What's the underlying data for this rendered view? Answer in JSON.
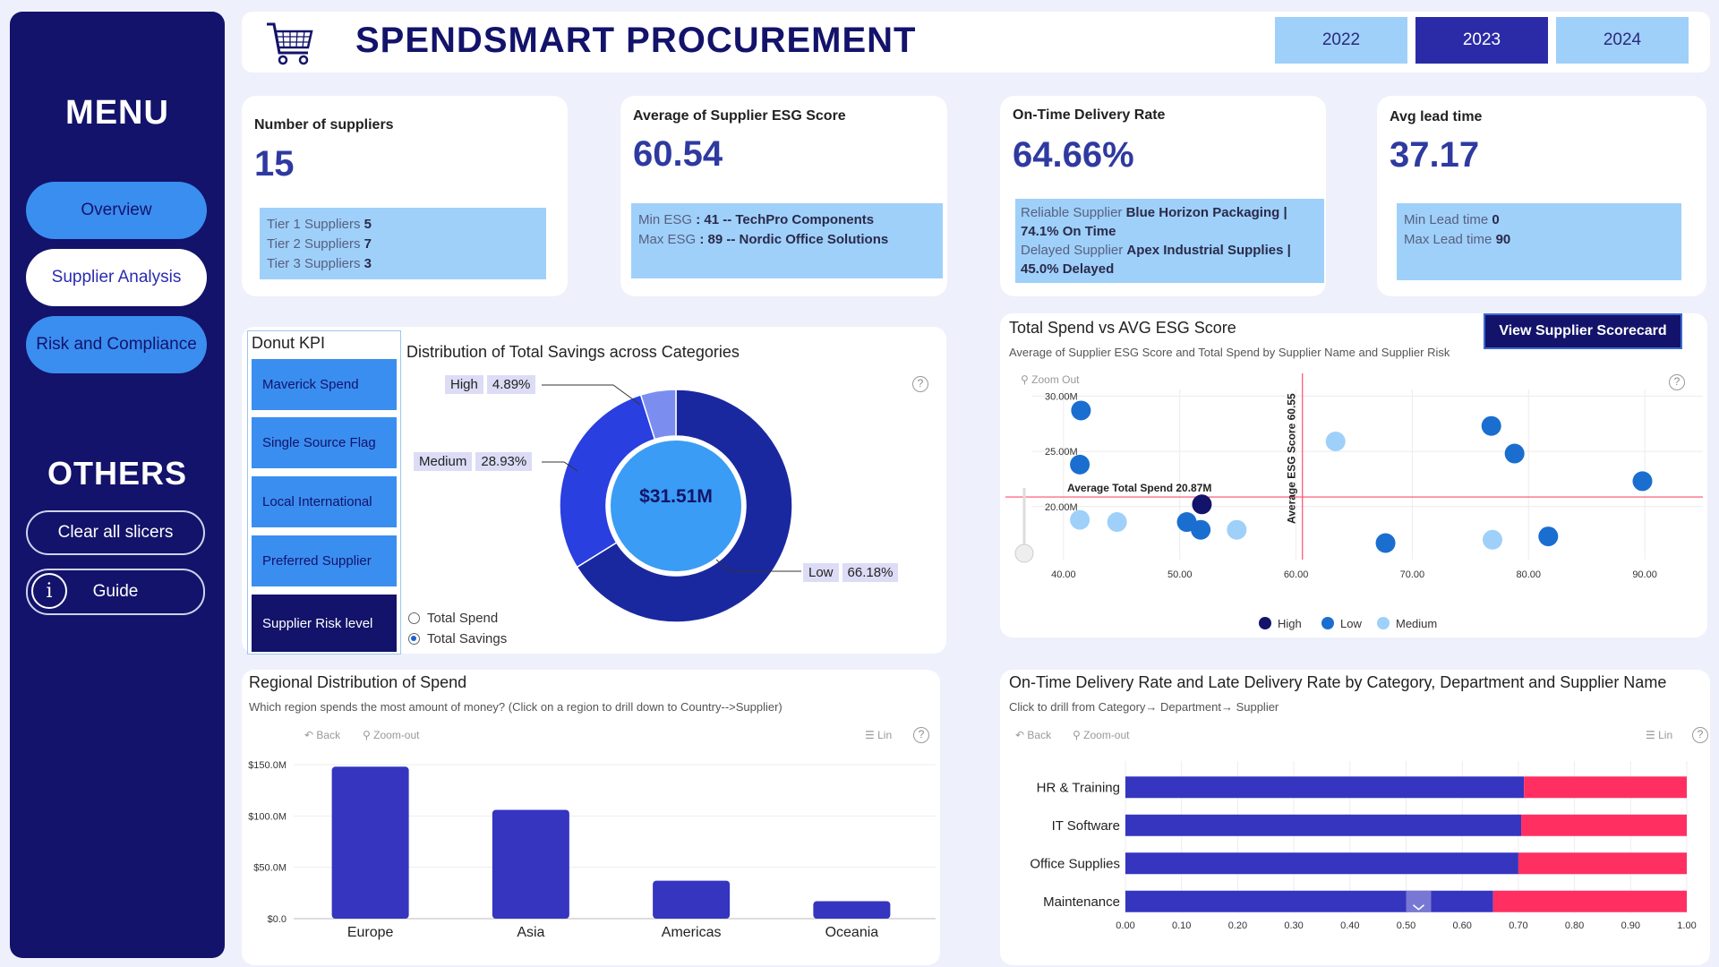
{
  "sidebar": {
    "menu_title": "MENU",
    "nav": [
      "Overview",
      "Supplier Analysis",
      "Risk and Compliance"
    ],
    "others_title": "OTHERS",
    "clear_label": "Clear all slicers",
    "guide_label": "Guide",
    "guide_icon": "i"
  },
  "header": {
    "title": "SPENDSMART PROCUREMENT",
    "years": [
      "2022",
      "2023",
      "2024"
    ],
    "active_year": "2023"
  },
  "kpis": {
    "suppliers": {
      "label": "Number of suppliers",
      "value": "15",
      "lines": [
        {
          "k": "Tier 1 Suppliers",
          "v": "5"
        },
        {
          "k": "Tier 2 Suppliers",
          "v": "7"
        },
        {
          "k": "Tier 3 Suppliers",
          "v": "3"
        }
      ]
    },
    "esg": {
      "label": "Average of Supplier ESG Score",
      "value": "60.54",
      "lines": [
        {
          "k": "Min ESG",
          "v": ": 41 -- TechPro Components"
        },
        {
          "k": "Max ESG",
          "v": ": 89 -- Nordic Office Solutions"
        }
      ]
    },
    "delivery": {
      "label": "On-Time Delivery Rate",
      "value": "64.66%",
      "lines": [
        {
          "k": "Reliable Supplier",
          "v": "Blue Horizon Packaging | 74.1% On Time"
        },
        {
          "k": "Delayed Supplier",
          "v": "Apex Industrial Supplies | 45.0% Delayed"
        }
      ]
    },
    "lead": {
      "label": "Avg lead time",
      "value": "37.17",
      "lines": [
        {
          "k": "Min Lead time",
          "v": "0"
        },
        {
          "k": "Max Lead time",
          "v": "90"
        }
      ]
    }
  },
  "donut_kpi": {
    "title": "Donut KPI",
    "options": [
      "Maverick Spend",
      "Single Source Flag",
      "Local International",
      "Preferred Supplier",
      "Supplier Risk level"
    ],
    "active": "Supplier Risk level"
  },
  "donut": {
    "title": "Distribution of Total Savings across Categories",
    "center_label": "$31.51M",
    "radio": [
      "Total Spend",
      "Total Savings"
    ],
    "radio_selected": "Total Savings",
    "colors": {
      "Low": "#1a28a0",
      "Medium": "#2a3fe0",
      "High": "#7b8ef0"
    }
  },
  "scatter": {
    "title": "Total Spend vs AVG ESG Score",
    "subtitle": "Average of Supplier ESG Score and Total Spend by Supplier Name and Supplier Risk",
    "button": "View Supplier Scorecard",
    "zoom_out": "Zoom Out",
    "ref_h_label": "Average Total Spend 20.87M",
    "ref_v_label": "Average ESG Score 60.55",
    "colors": {
      "High": "#13136b",
      "Low": "#1a6ed0",
      "Medium": "#9fd0fa"
    }
  },
  "regional": {
    "title": "Regional Distribution of Spend",
    "subtitle": "Which region spends the most amount of money? (Click on a region to drill down to Country-->Supplier)",
    "back": "Back",
    "zoom": "Zoom-out",
    "lin": "Lin",
    "color": "#3535c0"
  },
  "delivery_chart": {
    "title": "On-Time Delivery Rate and Late Delivery Rate by Category, Department and Supplier Name",
    "subtitle": "Click to drill from Category→ Department→ Supplier",
    "back": "Back",
    "zoom": "Zoom-out",
    "lin": "Lin",
    "colors": {
      "on_time": "#3535c0",
      "late": "#ff2f62"
    }
  },
  "icons": [
    "cart-icon",
    "info-icon",
    "question-icon",
    "back-icon",
    "zoom-icon",
    "list-icon",
    "chevron-down-icon"
  ],
  "chart_data": [
    {
      "type": "pie",
      "title": "Distribution of Total Savings across Categories",
      "categories": [
        "Low",
        "Medium",
        "High"
      ],
      "values": [
        66.18,
        28.93,
        4.89
      ],
      "labels": [
        "66.18%",
        "28.93%",
        "4.89%"
      ],
      "center": "$31.51M"
    },
    {
      "type": "scatter",
      "title": "Total Spend vs AVG ESG Score",
      "x_ticks": [
        "40.00",
        "50.00",
        "60.00",
        "70.00",
        "80.00",
        "90.00"
      ],
      "y_ticks": [
        "20.00M",
        "25.00M",
        "30.00M"
      ],
      "xlim": [
        35,
        95
      ],
      "ylim": [
        15.2,
        30.6
      ],
      "ref_x": 60.55,
      "ref_y": 20.87,
      "legend": [
        "High",
        "Low",
        "Medium"
      ],
      "series": [
        {
          "name": "High",
          "points": [
            [
              51.9,
              20.2
            ]
          ]
        },
        {
          "name": "Low",
          "points": [
            [
              41.5,
              28.7
            ],
            [
              41.4,
              23.8
            ],
            [
              76.8,
              27.3
            ],
            [
              78.8,
              24.8
            ],
            [
              89.8,
              22.3
            ],
            [
              50.6,
              18.6
            ],
            [
              51.8,
              17.9
            ],
            [
              67.7,
              16.7
            ],
            [
              81.7,
              17.3
            ]
          ]
        },
        {
          "name": "Medium",
          "points": [
            [
              63.4,
              25.9
            ],
            [
              41.4,
              18.8
            ],
            [
              44.6,
              18.6
            ],
            [
              54.9,
              17.9
            ],
            [
              76.9,
              17.0
            ]
          ]
        }
      ]
    },
    {
      "type": "bar",
      "title": "Regional Distribution of Spend",
      "categories": [
        "Europe",
        "Asia",
        "Americas",
        "Oceania"
      ],
      "values": [
        148,
        106,
        37,
        17
      ],
      "y_ticks": [
        "$0.0",
        "$50.0M",
        "$100.0M",
        "$150.0M"
      ],
      "ylim": [
        0,
        150
      ]
    },
    {
      "type": "bar",
      "title": "On-Time Delivery Rate and Late Delivery Rate by Category, Department and Supplier Name",
      "categories": [
        "HR & Training",
        "IT Software",
        "Office Supplies",
        "Maintenance"
      ],
      "series": [
        {
          "name": "On-Time",
          "values": [
            0.71,
            0.705,
            0.7,
            0.655
          ]
        },
        {
          "name": "Late",
          "values": [
            0.29,
            0.295,
            0.3,
            0.345
          ]
        }
      ],
      "x_ticks": [
        "0.00",
        "0.10",
        "0.20",
        "0.30",
        "0.40",
        "0.50",
        "0.60",
        "0.70",
        "0.80",
        "0.90",
        "1.00"
      ],
      "xlim": [
        0,
        1
      ]
    }
  ]
}
